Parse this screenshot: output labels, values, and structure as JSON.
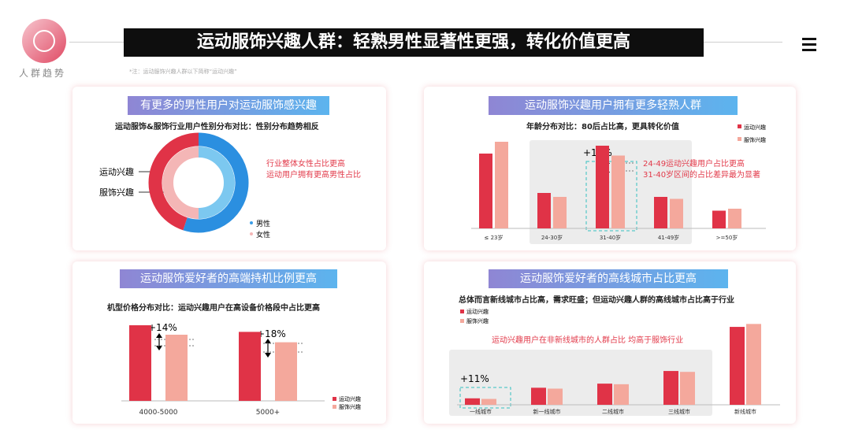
{
  "header": {
    "logo_label": "人群趋势",
    "title": "运动服饰兴趣人群：轻熟男性显著性更强，转化价值更高",
    "note": "*注：运动服饰兴趣人群以下简称“运动兴趣”"
  },
  "colors": {
    "series_a": "#e03347",
    "series_b": "#f4a89c",
    "male": "#2b8fe0",
    "female": "#f4b6b6"
  },
  "panels": {
    "gender": {
      "title": "有更多的男性用户对运动服饰感兴趣",
      "subtitle": "运动服饰&服饰行业用户性别分布对比：性别分布趋势相反",
      "ring_outer_label": "运动兴趣",
      "ring_inner_label": "服饰兴趣",
      "note_line1": "行业整体女性占比更高",
      "note_line2": "运动用户拥有更高男性占比",
      "legend_male": "男性",
      "legend_female": "女性"
    },
    "age": {
      "title": "运动服饰兴趣用户拥有更多轻熟人群",
      "subtitle": "年龄分布对比：80后占比高，更具转化价值",
      "annotation": "+14%",
      "note_line1": "24-49运动兴趣用户占比更高",
      "note_line2": "31-40岁区间的占比差异最为显著",
      "legend_a": "运动兴趣",
      "legend_b": "服饰兴趣"
    },
    "device": {
      "title": "运动服饰爱好者的高端持机比例更高",
      "subtitle": "机型价格分布对比：运动兴趣用户在高设备价格段中占比更高",
      "annotation_1": "+14%",
      "annotation_2": "+18%",
      "legend_a": "运动兴趣",
      "legend_b": "服饰兴趣"
    },
    "city": {
      "title": "运动服饰爱好者的高线城市占比更高",
      "subtitle": "总体而言新线城市占比高，需求旺盛；但运动兴趣人群的高线城市占比高于行业",
      "note": "运动兴趣用户在非新线城市的人群占比 均高于服饰行业",
      "annotation": "+11%",
      "legend_a": "运动兴趣",
      "legend_b": "服饰兴趣"
    }
  },
  "chart_data": [
    {
      "type": "pie",
      "title": "有更多的男性用户对运动服饰感兴趣",
      "rings": [
        {
          "name": "运动兴趣",
          "slices": [
            {
              "label": "男性",
              "value": 55
            },
            {
              "label": "女性",
              "value": 45
            }
          ]
        },
        {
          "name": "服饰兴趣",
          "slices": [
            {
              "label": "男性",
              "value": 50
            },
            {
              "label": "女性",
              "value": 50
            }
          ]
        }
      ]
    },
    {
      "type": "bar",
      "title": "运动服饰兴趣用户拥有更多轻熟人群",
      "categories": [
        "≤ 23岁",
        "24-30岁",
        "31-40岁",
        "41-49岁",
        ">=50岁"
      ],
      "series": [
        {
          "name": "运动兴趣",
          "values": [
            19,
            9,
            21,
            8,
            4.5
          ]
        },
        {
          "name": "服饰兴趣",
          "values": [
            22,
            8,
            18.5,
            7.5,
            5
          ]
        }
      ],
      "ylim": [
        0,
        28
      ]
    },
    {
      "type": "bar",
      "title": "运动服饰爱好者的高端持机比例更高",
      "categories": [
        "4000-5000",
        "5000+"
      ],
      "series": [
        {
          "name": "运动兴趣",
          "values": [
            16,
            14.6
          ]
        },
        {
          "name": "服饰兴趣",
          "values": [
            14,
            12.4
          ]
        }
      ],
      "ylim": [
        0,
        20
      ]
    },
    {
      "type": "bar",
      "title": "运动服饰爱好者的高线城市占比更高",
      "categories": [
        "一线城市",
        "新一线城市",
        "二线城市",
        "三线城市",
        "新线城市"
      ],
      "series": [
        {
          "name": "运动兴趣",
          "values": [
            2.2,
            5.8,
            7.2,
            11.5,
            26.5
          ]
        },
        {
          "name": "服饰兴趣",
          "values": [
            2.0,
            5.5,
            7.0,
            11.2,
            27.5
          ]
        }
      ],
      "ylim": [
        0,
        30
      ]
    }
  ]
}
